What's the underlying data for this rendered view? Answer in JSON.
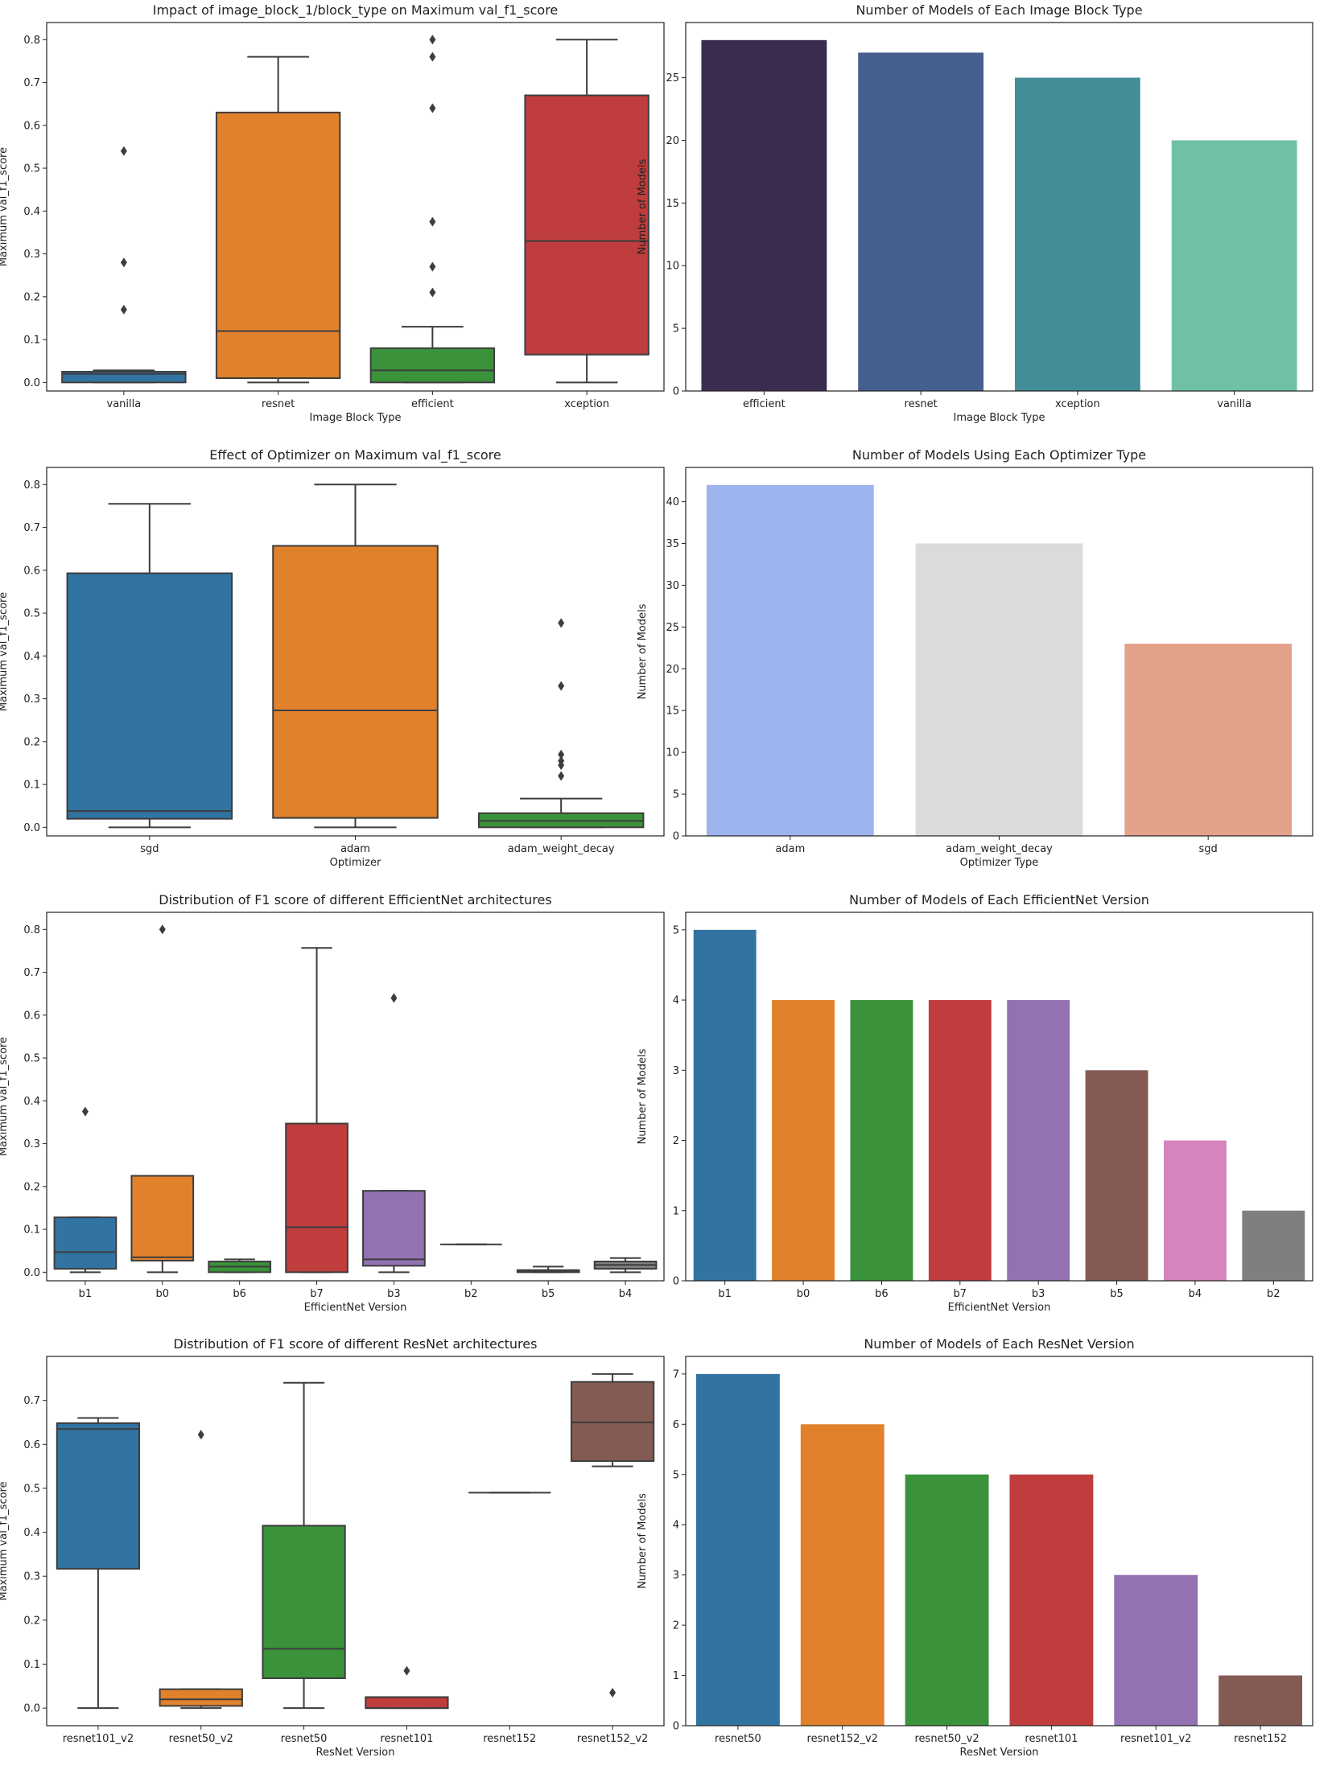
{
  "chart_data": [
    {
      "type": "box",
      "title": "Impact of image_block_1/block_type on Maximum val_f1_score",
      "xlabel": "Image Block Type",
      "ylabel": "Maximum val_f1_score",
      "ylim": [
        -0.02,
        0.84
      ],
      "yticks": [
        0.0,
        0.1,
        0.2,
        0.3,
        0.4,
        0.5,
        0.6,
        0.7,
        0.8
      ],
      "categories": [
        "vanilla",
        "resnet",
        "efficient",
        "xception"
      ],
      "colors": [
        "#3274a1",
        "#e1812c",
        "#3a923a",
        "#c03d3e"
      ],
      "boxes": [
        {
          "whislo": 0.0,
          "q1": 0.0,
          "med": 0.02,
          "q3": 0.025,
          "whishi": 0.028,
          "fliers": [
            0.17,
            0.28,
            0.54
          ]
        },
        {
          "whislo": 0.0,
          "q1": 0.01,
          "med": 0.12,
          "q3": 0.63,
          "whishi": 0.76,
          "fliers": []
        },
        {
          "whislo": 0.0,
          "q1": 0.0,
          "med": 0.028,
          "q3": 0.08,
          "whishi": 0.13,
          "fliers": [
            0.21,
            0.27,
            0.375,
            0.64,
            0.76,
            0.8
          ]
        },
        {
          "whislo": 0.0,
          "q1": 0.065,
          "med": 0.33,
          "q3": 0.67,
          "whishi": 0.8,
          "fliers": []
        }
      ]
    },
    {
      "type": "bar",
      "title": "Number of Models of Each Image Block Type",
      "xlabel": "Image Block Type",
      "ylabel": "Number of Models",
      "ylim": [
        0,
        29.4
      ],
      "yticks": [
        0,
        5,
        10,
        15,
        20,
        25
      ],
      "categories": [
        "efficient",
        "resnet",
        "xception",
        "vanilla"
      ],
      "values": [
        28,
        27,
        25,
        20
      ],
      "colors": [
        "#3a2c4f",
        "#455f8f",
        "#438d98",
        "#6fc1a6"
      ]
    },
    {
      "type": "box",
      "title": "Effect of Optimizer on Maximum val_f1_score",
      "xlabel": "Optimizer",
      "ylabel": "Maximum val_f1_score",
      "ylim": [
        -0.02,
        0.84
      ],
      "yticks": [
        0.0,
        0.1,
        0.2,
        0.3,
        0.4,
        0.5,
        0.6,
        0.7,
        0.8
      ],
      "categories": [
        "sgd",
        "adam",
        "adam_weight_decay"
      ],
      "colors": [
        "#3274a1",
        "#e1812c",
        "#3a923a"
      ],
      "boxes": [
        {
          "whislo": 0.0,
          "q1": 0.02,
          "med": 0.038,
          "q3": 0.593,
          "whishi": 0.755,
          "fliers": []
        },
        {
          "whislo": 0.0,
          "q1": 0.022,
          "med": 0.273,
          "q3": 0.657,
          "whishi": 0.8,
          "fliers": []
        },
        {
          "whislo": 0.0,
          "q1": 0.0,
          "med": 0.015,
          "q3": 0.033,
          "whishi": 0.067,
          "fliers": [
            0.12,
            0.145,
            0.155,
            0.17,
            0.33,
            0.477
          ]
        }
      ]
    },
    {
      "type": "bar",
      "title": "Number of Models Using Each Optimizer Type",
      "xlabel": "Optimizer Type",
      "ylabel": "Number of Models",
      "ylim": [
        0,
        44.1
      ],
      "yticks": [
        0,
        5,
        10,
        15,
        20,
        25,
        30,
        35,
        40
      ],
      "categories": [
        "adam",
        "adam_weight_decay",
        "sgd"
      ],
      "values": [
        42,
        35,
        23
      ],
      "colors": [
        "#9db4ef",
        "#dbdbdb",
        "#e4a18a"
      ]
    },
    {
      "type": "box",
      "title": "Distribution of F1 score of different EfficientNet architectures",
      "xlabel": "EfficientNet Version",
      "ylabel": "Maximum val_f1_score",
      "ylim": [
        -0.02,
        0.84
      ],
      "yticks": [
        0.0,
        0.1,
        0.2,
        0.3,
        0.4,
        0.5,
        0.6,
        0.7,
        0.8
      ],
      "categories": [
        "b1",
        "b0",
        "b6",
        "b7",
        "b3",
        "b2",
        "b5",
        "b4"
      ],
      "colors": [
        "#3274a1",
        "#e1812c",
        "#3a923a",
        "#c03d3e",
        "#9372b2",
        "#845b53",
        "#d684bd",
        "#7f7f7f"
      ],
      "boxes": [
        {
          "whislo": 0.0,
          "q1": 0.008,
          "med": 0.047,
          "q3": 0.128,
          "whishi": 0.128,
          "fliers": [
            0.375
          ]
        },
        {
          "whislo": 0.0,
          "q1": 0.027,
          "med": 0.035,
          "q3": 0.225,
          "whishi": 0.225,
          "fliers": [
            0.8
          ]
        },
        {
          "whislo": 0.0,
          "q1": 0.0,
          "med": 0.013,
          "q3": 0.025,
          "whishi": 0.03,
          "fliers": []
        },
        {
          "whislo": 0.0,
          "q1": 0.0,
          "med": 0.105,
          "q3": 0.347,
          "whishi": 0.757,
          "fliers": []
        },
        {
          "whislo": 0.0,
          "q1": 0.015,
          "med": 0.03,
          "q3": 0.19,
          "whishi": 0.19,
          "fliers": [
            0.64
          ]
        },
        {
          "whislo": 0.065,
          "q1": 0.065,
          "med": 0.065,
          "q3": 0.065,
          "whishi": 0.065,
          "fliers": []
        },
        {
          "whislo": 0.0,
          "q1": 0.0,
          "med": 0.003,
          "q3": 0.005,
          "whishi": 0.013,
          "fliers": []
        },
        {
          "whislo": 0.0,
          "q1": 0.008,
          "med": 0.017,
          "q3": 0.025,
          "whishi": 0.033,
          "fliers": []
        }
      ]
    },
    {
      "type": "bar",
      "title": "Number of Models of Each EfficientNet Version",
      "xlabel": "EfficientNet Version",
      "ylabel": "Number of Models",
      "ylim": [
        0,
        5.25
      ],
      "yticks": [
        0,
        1,
        2,
        3,
        4,
        5
      ],
      "categories": [
        "b1",
        "b0",
        "b6",
        "b7",
        "b3",
        "b5",
        "b4",
        "b2"
      ],
      "values": [
        5,
        4,
        4,
        4,
        4,
        3,
        2,
        1
      ],
      "colors": [
        "#3274a1",
        "#e1812c",
        "#3a923a",
        "#c03d3e",
        "#9372b2",
        "#845b53",
        "#d684bd",
        "#7f7f7f"
      ]
    },
    {
      "type": "box",
      "title": "Distribution of F1 score of different ResNet architectures",
      "xlabel": "ResNet Version",
      "ylabel": "Maximum val_f1_score",
      "ylim": [
        -0.04,
        0.8
      ],
      "yticks": [
        0.0,
        0.1,
        0.2,
        0.3,
        0.4,
        0.5,
        0.6,
        0.7
      ],
      "categories": [
        "resnet101_v2",
        "resnet50_v2",
        "resnet50",
        "resnet101",
        "resnet152",
        "resnet152_v2"
      ],
      "colors": [
        "#3274a1",
        "#e1812c",
        "#3a923a",
        "#c03d3e",
        "#9372b2",
        "#845b53"
      ],
      "boxes": [
        {
          "whislo": 0.0,
          "q1": 0.317,
          "med": 0.635,
          "q3": 0.648,
          "whishi": 0.66,
          "fliers": []
        },
        {
          "whislo": 0.0,
          "q1": 0.005,
          "med": 0.02,
          "q3": 0.043,
          "whishi": 0.043,
          "fliers": [
            0.622
          ]
        },
        {
          "whislo": 0.0,
          "q1": 0.068,
          "med": 0.135,
          "q3": 0.415,
          "whishi": 0.74,
          "fliers": []
        },
        {
          "whislo": 0.0,
          "q1": 0.0,
          "med": 0.0,
          "q3": 0.025,
          "whishi": 0.025,
          "fliers": [
            0.085
          ]
        },
        {
          "whislo": 0.49,
          "q1": 0.49,
          "med": 0.49,
          "q3": 0.49,
          "whishi": 0.49,
          "fliers": []
        },
        {
          "whislo": 0.55,
          "q1": 0.562,
          "med": 0.65,
          "q3": 0.742,
          "whishi": 0.76,
          "fliers": [
            0.035
          ]
        }
      ]
    },
    {
      "type": "bar",
      "title": "Number of Models of Each ResNet Version",
      "xlabel": "ResNet Version",
      "ylabel": "Number of Models",
      "ylim": [
        0,
        7.35
      ],
      "yticks": [
        0,
        1,
        2,
        3,
        4,
        5,
        6,
        7
      ],
      "categories": [
        "resnet50",
        "resnet152_v2",
        "resnet50_v2",
        "resnet101",
        "resnet101_v2",
        "resnet152"
      ],
      "values": [
        7,
        6,
        5,
        5,
        3,
        1
      ],
      "colors": [
        "#3274a1",
        "#e1812c",
        "#3a923a",
        "#c03d3e",
        "#9372b2",
        "#845b53"
      ]
    }
  ]
}
